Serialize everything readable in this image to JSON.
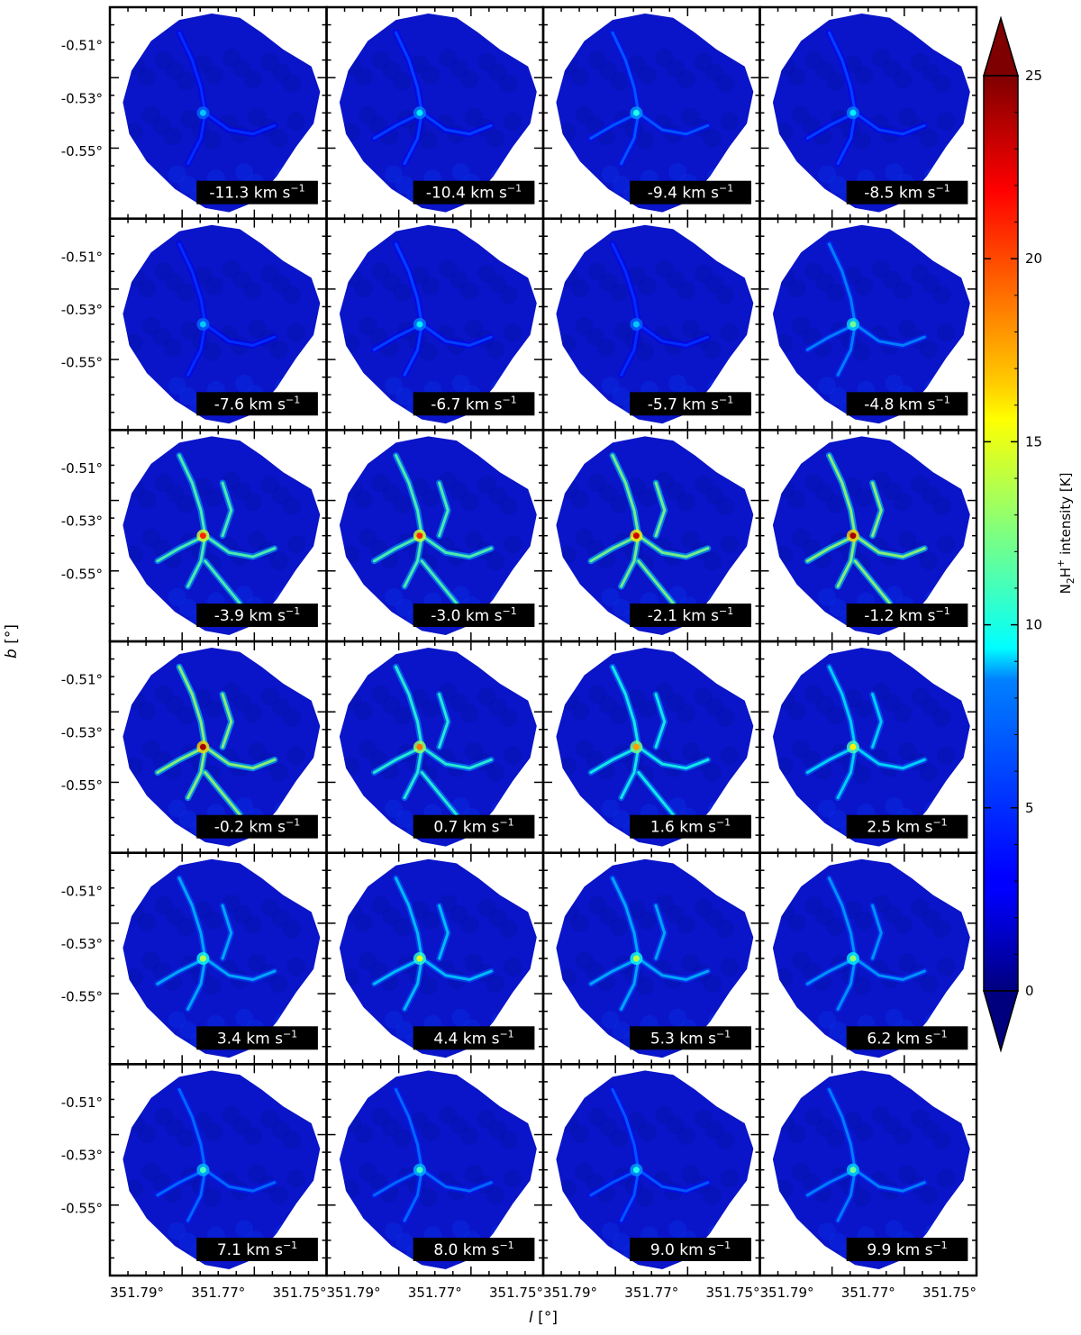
{
  "chart_data": {
    "type": "heatmap",
    "description_type": "channel-map-grid",
    "rows": 6,
    "cols": 4,
    "panels": [
      {
        "velocity": "-11.3",
        "unit": "km s",
        "unit_exp": "−1",
        "peak": 8
      },
      {
        "velocity": "-10.4",
        "unit": "km s",
        "unit_exp": "−1",
        "peak": 9
      },
      {
        "velocity": "-9.4",
        "unit": "km s",
        "unit_exp": "−1",
        "peak": 10
      },
      {
        "velocity": "-8.5",
        "unit": "km s",
        "unit_exp": "−1",
        "peak": 9
      },
      {
        "velocity": "-7.6",
        "unit": "km s",
        "unit_exp": "−1",
        "peak": 8
      },
      {
        "velocity": "-6.7",
        "unit": "km s",
        "unit_exp": "−1",
        "peak": 9
      },
      {
        "velocity": "-5.7",
        "unit": "km s",
        "unit_exp": "−1",
        "peak": 8
      },
      {
        "velocity": "-4.8",
        "unit": "km s",
        "unit_exp": "−1",
        "peak": 12
      },
      {
        "velocity": "-3.9",
        "unit": "km s",
        "unit_exp": "−1",
        "peak": 21
      },
      {
        "velocity": "-3.0",
        "unit": "km s",
        "unit_exp": "−1",
        "peak": 21
      },
      {
        "velocity": "-2.1",
        "unit": "km s",
        "unit_exp": "−1",
        "peak": 23
      },
      {
        "velocity": "-1.2",
        "unit": "km s",
        "unit_exp": "−1",
        "peak": 24
      },
      {
        "velocity": "-0.2",
        "unit": "km s",
        "unit_exp": "−1",
        "peak": 24
      },
      {
        "velocity": "0.7",
        "unit": "km s",
        "unit_exp": "−1",
        "peak": 19
      },
      {
        "velocity": "1.6",
        "unit": "km s",
        "unit_exp": "−1",
        "peak": 18
      },
      {
        "velocity": "2.5",
        "unit": "km s",
        "unit_exp": "−1",
        "peak": 16
      },
      {
        "velocity": "3.4",
        "unit": "km s",
        "unit_exp": "−1",
        "peak": 14
      },
      {
        "velocity": "4.4",
        "unit": "km s",
        "unit_exp": "−1",
        "peak": 15
      },
      {
        "velocity": "5.3",
        "unit": "km s",
        "unit_exp": "−1",
        "peak": 14
      },
      {
        "velocity": "6.2",
        "unit": "km s",
        "unit_exp": "−1",
        "peak": 13
      },
      {
        "velocity": "7.1",
        "unit": "km s",
        "unit_exp": "−1",
        "peak": 11
      },
      {
        "velocity": "8.0",
        "unit": "km s",
        "unit_exp": "−1",
        "peak": 11
      },
      {
        "velocity": "9.0",
        "unit": "km s",
        "unit_exp": "−1",
        "peak": 10
      },
      {
        "velocity": "9.9",
        "unit": "km s",
        "unit_exp": "−1",
        "peak": 12
      }
    ],
    "x_ticks": [
      "351.79°",
      "351.77°",
      "351.75°"
    ],
    "x_tick_values": [
      351.79,
      351.77,
      351.75
    ],
    "y_ticks": [
      "-0.51°",
      "-0.53°",
      "-0.55°"
    ],
    "y_tick_values": [
      -0.51,
      -0.53,
      -0.55
    ],
    "xlabel": "l [°]",
    "xlabel_var": "l",
    "xlabel_unit": " [°]",
    "ylabel": "b [°]",
    "ylabel_var": "b",
    "ylabel_unit": " [°]",
    "colorbar": {
      "label": "N2H+ intensity [K]",
      "label_parts": [
        "N",
        "2",
        "H",
        "+",
        " intensity [K]"
      ],
      "ticks": [
        0,
        5,
        10,
        15,
        20,
        25
      ],
      "range": [
        0,
        25
      ],
      "colormap": "jet",
      "extend": "both"
    }
  }
}
